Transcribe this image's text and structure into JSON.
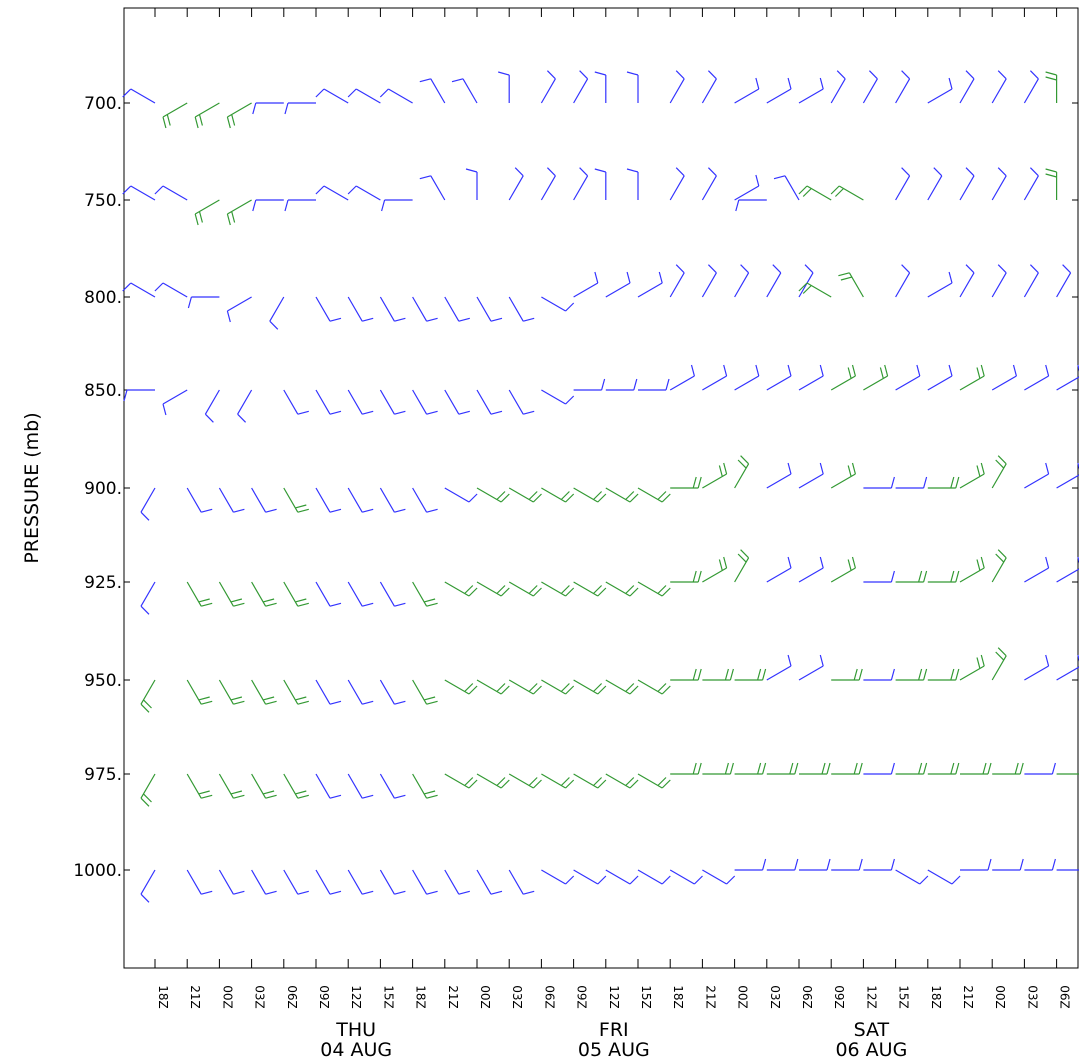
{
  "chart_data": {
    "type": "wind-barb-time-height",
    "ylabel": "PRESSURE (mb)",
    "y_ticks": [
      "700",
      "750",
      "800",
      "850",
      "900",
      "925",
      "950",
      "975",
      "1000"
    ],
    "levels": [
      700,
      750,
      800,
      850,
      900,
      925,
      950,
      975,
      1000
    ],
    "x_ticks": [
      "18Z",
      "21Z",
      "00Z",
      "03Z",
      "06Z",
      "09Z",
      "12Z",
      "15Z",
      "18Z",
      "21Z",
      "00Z",
      "03Z",
      "06Z",
      "09Z",
      "12Z",
      "15Z",
      "18Z",
      "21Z",
      "00Z",
      "03Z",
      "06Z",
      "09Z",
      "12Z",
      "15Z",
      "18Z",
      "21Z",
      "00Z",
      "03Z",
      "06Z"
    ],
    "days": [
      {
        "weekday": "THU",
        "date": "04 AUG"
      },
      {
        "weekday": "FRI",
        "date": "05 AUG"
      },
      {
        "weekday": "SAT",
        "date": "06 AUG"
      }
    ],
    "colors": {
      "light_wind": "#3333ff",
      "strong_wind": "#339933",
      "axis": "#000000"
    },
    "wind_speed_kt": [
      [
        10,
        20,
        20,
        20,
        10,
        10,
        10,
        10,
        10,
        10,
        10,
        10,
        10,
        10,
        10,
        10,
        10,
        10,
        10,
        10,
        10,
        10,
        10,
        10,
        10,
        10,
        10,
        10,
        20
      ],
      [
        10,
        10,
        20,
        20,
        10,
        10,
        10,
        10,
        10,
        10,
        10,
        10,
        10,
        10,
        10,
        10,
        10,
        10,
        10,
        10,
        10,
        20,
        20,
        10,
        10,
        10,
        10,
        10,
        20
      ],
      [
        10,
        10,
        10,
        10,
        10,
        10,
        10,
        10,
        10,
        10,
        10,
        10,
        10,
        10,
        10,
        10,
        10,
        10,
        10,
        10,
        10,
        20,
        20,
        10,
        10,
        10,
        10,
        10,
        10
      ],
      [
        10,
        10,
        10,
        10,
        10,
        10,
        10,
        10,
        10,
        10,
        10,
        10,
        10,
        10,
        10,
        10,
        10,
        10,
        10,
        10,
        10,
        20,
        20,
        10,
        10,
        20,
        10,
        10,
        10
      ],
      [
        10,
        10,
        10,
        10,
        20,
        10,
        10,
        10,
        10,
        10,
        20,
        20,
        20,
        20,
        20,
        20,
        20,
        20,
        20,
        10,
        10,
        20,
        10,
        10,
        20,
        20,
        20,
        10,
        10
      ],
      [
        10,
        20,
        20,
        20,
        20,
        10,
        10,
        10,
        20,
        20,
        20,
        20,
        20,
        20,
        20,
        20,
        20,
        20,
        20,
        10,
        10,
        20,
        10,
        20,
        20,
        20,
        20,
        10,
        10
      ],
      [
        20,
        20,
        20,
        20,
        20,
        10,
        10,
        10,
        20,
        20,
        20,
        20,
        20,
        20,
        20,
        20,
        20,
        20,
        20,
        10,
        10,
        20,
        10,
        20,
        20,
        20,
        20,
        10,
        10
      ],
      [
        20,
        20,
        20,
        20,
        20,
        10,
        10,
        10,
        20,
        20,
        20,
        20,
        20,
        20,
        20,
        20,
        20,
        20,
        20,
        20,
        20,
        20,
        10,
        20,
        20,
        20,
        20,
        10,
        20
      ],
      [
        10,
        10,
        10,
        10,
        10,
        10,
        10,
        10,
        10,
        10,
        10,
        10,
        10,
        10,
        10,
        10,
        10,
        10,
        10,
        10,
        10,
        10,
        10,
        10,
        10,
        10,
        10,
        10,
        10
      ]
    ],
    "wind_dir_deg": [
      [
        300,
        240,
        240,
        240,
        270,
        270,
        300,
        300,
        300,
        330,
        330,
        360,
        30,
        30,
        360,
        360,
        30,
        30,
        60,
        60,
        60,
        30,
        30,
        30,
        60,
        30,
        30,
        30,
        360
      ],
      [
        300,
        300,
        240,
        240,
        270,
        270,
        300,
        300,
        270,
        330,
        360,
        30,
        30,
        30,
        360,
        360,
        30,
        30,
        60,
        270,
        330,
        300,
        300,
        30,
        30,
        30,
        30,
        30,
        360
      ],
      [
        300,
        300,
        270,
        240,
        210,
        150,
        150,
        150,
        150,
        150,
        150,
        150,
        120,
        60,
        60,
        60,
        30,
        30,
        30,
        30,
        30,
        300,
        330,
        30,
        60,
        30,
        30,
        30,
        30
      ],
      [
        270,
        240,
        210,
        210,
        150,
        150,
        150,
        150,
        150,
        150,
        150,
        150,
        120,
        90,
        90,
        90,
        60,
        60,
        60,
        60,
        60,
        60,
        60,
        60,
        60,
        60,
        60,
        60,
        60
      ],
      [
        210,
        150,
        150,
        150,
        150,
        150,
        150,
        150,
        150,
        120,
        120,
        120,
        120,
        120,
        120,
        120,
        90,
        60,
        30,
        60,
        60,
        60,
        90,
        90,
        90,
        60,
        30,
        60,
        60
      ],
      [
        210,
        150,
        150,
        150,
        150,
        150,
        150,
        150,
        150,
        120,
        120,
        120,
        120,
        120,
        120,
        120,
        90,
        60,
        30,
        60,
        60,
        60,
        90,
        90,
        90,
        60,
        30,
        60,
        60
      ],
      [
        210,
        150,
        150,
        150,
        150,
        150,
        150,
        150,
        150,
        120,
        120,
        120,
        120,
        120,
        120,
        120,
        90,
        90,
        90,
        60,
        60,
        90,
        90,
        90,
        90,
        60,
        30,
        60,
        60
      ],
      [
        210,
        150,
        150,
        150,
        150,
        150,
        150,
        150,
        150,
        120,
        120,
        120,
        120,
        120,
        120,
        120,
        90,
        90,
        90,
        90,
        90,
        90,
        90,
        90,
        90,
        90,
        90,
        90,
        90
      ],
      [
        210,
        150,
        150,
        150,
        150,
        150,
        150,
        150,
        150,
        150,
        150,
        150,
        120,
        120,
        120,
        120,
        120,
        120,
        90,
        90,
        90,
        90,
        90,
        120,
        120,
        90,
        90,
        90,
        90
      ]
    ]
  }
}
